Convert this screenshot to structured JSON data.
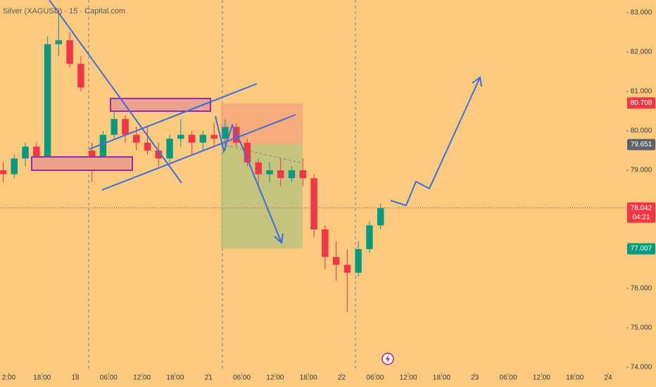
{
  "chart_data": {
    "type": "candlestick",
    "title": "Silver (XAGUSD) · 15 · Capital.com",
    "up_color": "#089981",
    "down_color": "#f23645",
    "x": [
      -13,
      -11,
      -9,
      -7,
      -5,
      -3,
      -1,
      1,
      3,
      5,
      7,
      9,
      11,
      13,
      15,
      17,
      19,
      21,
      23,
      25,
      27,
      29,
      31,
      33,
      35,
      37,
      39,
      41,
      43,
      45,
      47,
      49,
      51,
      53,
      55
    ],
    "open": [
      79.0,
      78.9,
      79.3,
      79.6,
      79.2,
      82.2,
      82.3,
      81.7,
      79.5,
      79.3,
      79.9,
      80.3,
      79.9,
      79.7,
      79.5,
      79.3,
      79.8,
      79.9,
      79.7,
      79.9,
      79.8,
      80.1,
      79.7,
      79.2,
      78.9,
      79.0,
      78.8,
      79.0,
      78.8,
      77.5,
      76.8,
      76.6,
      76.4,
      77.0,
      77.6
    ],
    "high": [
      79.2,
      79.4,
      79.7,
      79.7,
      82.4,
      83.0,
      82.5,
      81.9,
      79.7,
      80.0,
      80.6,
      80.4,
      80.1,
      80.1,
      79.7,
      79.9,
      80.3,
      80.0,
      80.0,
      80.2,
      80.3,
      80.2,
      79.8,
      79.3,
      79.2,
      79.3,
      79.1,
      79.3,
      78.9,
      77.6,
      77.2,
      77.0,
      77.2,
      77.7,
      78.15
    ],
    "low": [
      78.7,
      78.8,
      79.1,
      79.0,
      79.1,
      81.9,
      81.6,
      81.0,
      78.7,
      79.1,
      79.8,
      79.7,
      79.5,
      79.4,
      79.1,
      79.2,
      79.6,
      79.4,
      79.5,
      79.6,
      79.5,
      79.6,
      79.1,
      78.6,
      78.7,
      78.6,
      78.7,
      78.6,
      77.3,
      76.5,
      76.2,
      75.4,
      76.3,
      76.9,
      77.5
    ],
    "close": [
      78.9,
      79.3,
      79.6,
      79.2,
      82.2,
      82.3,
      81.7,
      81.1,
      79.3,
      79.9,
      80.3,
      79.9,
      79.7,
      79.5,
      79.3,
      79.8,
      79.9,
      79.7,
      79.9,
      79.8,
      80.1,
      79.7,
      79.2,
      78.9,
      79.0,
      78.8,
      79.0,
      78.8,
      77.5,
      76.8,
      76.6,
      76.4,
      77.0,
      77.6,
      78.042
    ],
    "xlim": [
      -13.57,
      99.3
    ],
    "ylim": [
      73.857,
      83.321
    ],
    "xticks": [
      {
        "value": -12,
        "label": "2:00"
      },
      {
        "value": -6,
        "label": "18:00"
      },
      {
        "value": 0,
        "label": "18"
      },
      {
        "value": 6,
        "label": "06:00"
      },
      {
        "value": 12,
        "label": "12:00"
      },
      {
        "value": 18,
        "label": "18:00"
      },
      {
        "value": 24,
        "label": "21"
      },
      {
        "value": 30,
        "label": "06:00"
      },
      {
        "value": 36,
        "label": "12:00"
      },
      {
        "value": 42,
        "label": "18:00"
      },
      {
        "value": 48,
        "label": "22"
      },
      {
        "value": 54,
        "label": "06:00"
      },
      {
        "value": 60,
        "label": "12:00"
      },
      {
        "value": 66,
        "label": "18:00"
      },
      {
        "value": 72,
        "label": "23"
      },
      {
        "value": 78,
        "label": "06:00"
      },
      {
        "value": 84,
        "label": "12:00"
      },
      {
        "value": 90,
        "label": "18:00"
      },
      {
        "value": 96,
        "label": "24"
      }
    ],
    "yticks": [
      {
        "value": 83,
        "label": "83.000"
      },
      {
        "value": 82,
        "label": "82.000"
      },
      {
        "value": 81,
        "label": "81.000"
      },
      {
        "value": 80,
        "label": "80.000"
      },
      {
        "value": 79,
        "label": "79.000"
      },
      {
        "value": 78,
        "label": "78.000"
      },
      {
        "value": 77,
        "label": "77.000"
      },
      {
        "value": 76,
        "label": "76.000"
      },
      {
        "value": 75,
        "label": "75.000"
      },
      {
        "value": 74,
        "label": "74.000"
      }
    ],
    "price_labels": [
      {
        "value": 80.708,
        "color": "#f23645"
      },
      {
        "value": 79.651,
        "color": "#5d606b"
      },
      {
        "value": 78.042,
        "color": "#f23645",
        "countdown": "04:21"
      },
      {
        "value": 77.007,
        "color": "#089981"
      }
    ]
  }
}
